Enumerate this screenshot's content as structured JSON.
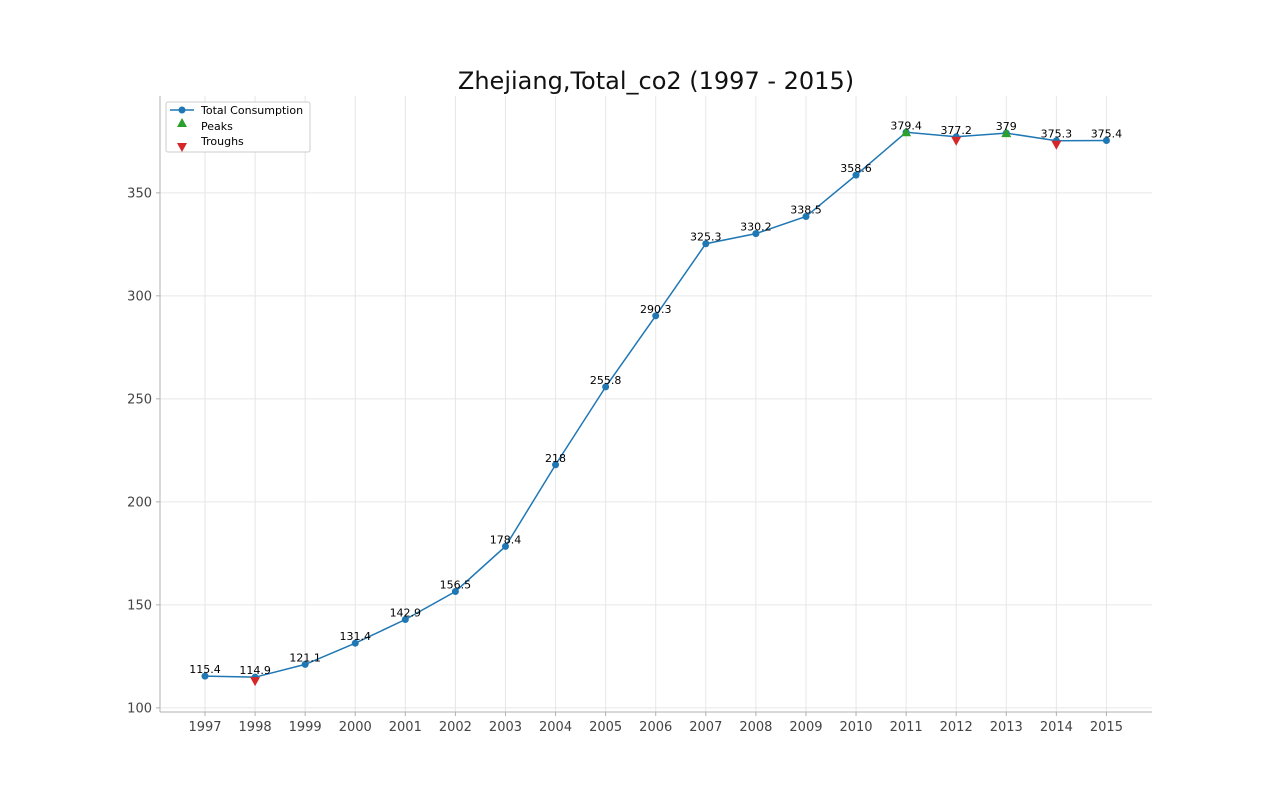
{
  "chart_data": {
    "type": "line",
    "title": "Zhejiang,Total_co2 (1997 - 2015)",
    "xlabel": "",
    "ylabel": "",
    "categories": [
      "1997",
      "1998",
      "1999",
      "2000",
      "2001",
      "2002",
      "2003",
      "2004",
      "2005",
      "2006",
      "2007",
      "2008",
      "2009",
      "2010",
      "2011",
      "2012",
      "2013",
      "2014",
      "2015"
    ],
    "series": [
      {
        "name": "Total Consumption",
        "color": "#1f77b4",
        "values": [
          115.4,
          114.9,
          121.1,
          131.4,
          142.9,
          156.5,
          178.4,
          218,
          255.8,
          290.3,
          325.3,
          330.2,
          338.5,
          358.6,
          379.4,
          377.2,
          379,
          375.3,
          375.4
        ]
      }
    ],
    "data_labels": [
      "115.4",
      "114.9",
      "121.1",
      "131.4",
      "142.9",
      "156.5",
      "178.4",
      "218",
      "255.8",
      "290.3",
      "325.3",
      "330.2",
      "338.5",
      "358.6",
      "379.4",
      "377.2",
      "379",
      "375.3",
      "375.4"
    ],
    "peaks": {
      "name": "Peaks",
      "color": "#2ca02c",
      "categories": [
        "2011",
        "2013"
      ],
      "values": [
        379.4,
        379
      ]
    },
    "troughs": {
      "name": "Troughs",
      "color": "#d62728",
      "categories": [
        "1998",
        "2012",
        "2014"
      ],
      "values": [
        114.9,
        377.2,
        375.3
      ]
    },
    "ylim": [
      98,
      397
    ],
    "yticks": [
      100,
      150,
      200,
      250,
      300,
      350
    ],
    "grid": true,
    "legend": "top-left"
  }
}
